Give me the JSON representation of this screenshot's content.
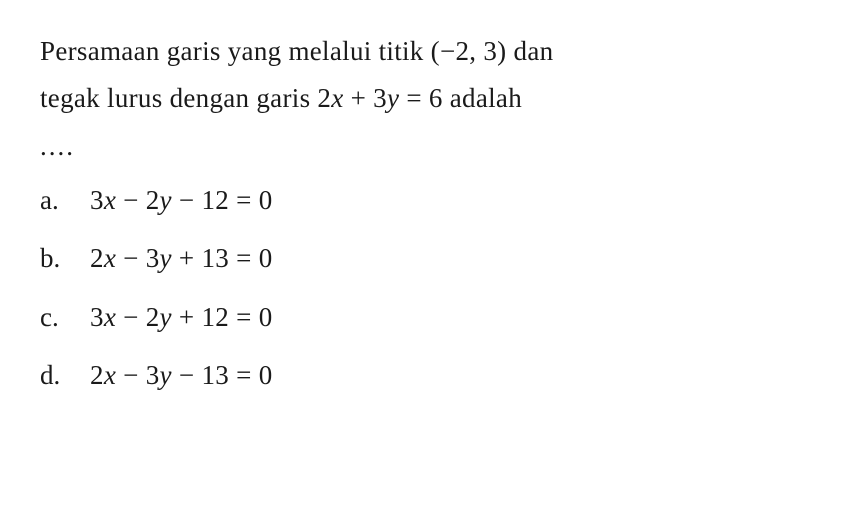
{
  "question": {
    "line1_part1": "Persamaan garis yang melalui titik (",
    "line1_neg": "−",
    "line1_part2": "2, 3) dan",
    "line2_part1": "tegak lurus dengan garis 2",
    "line2_x": "x",
    "line2_part2": " + 3",
    "line2_y": "y",
    "line2_part3": " = 6 adalah",
    "ellipsis": "....",
    "text_color": "#1a1a1a",
    "background_color": "#ffffff",
    "font_size": 27
  },
  "options": [
    {
      "label": "a.",
      "eq_prefix": "3",
      "eq_var1": "x",
      "eq_mid1": " − 2",
      "eq_var2": "y",
      "eq_mid2": " − 12 = 0"
    },
    {
      "label": "b.",
      "eq_prefix": "2",
      "eq_var1": "x",
      "eq_mid1": " − 3",
      "eq_var2": "y",
      "eq_mid2": " + 13 = 0"
    },
    {
      "label": "c.",
      "eq_prefix": "3",
      "eq_var1": "x",
      "eq_mid1": " − 2",
      "eq_var2": "y",
      "eq_mid2": " + 12 = 0"
    },
    {
      "label": "d.",
      "eq_prefix": "2",
      "eq_var1": "x",
      "eq_mid1": " − 3",
      "eq_var2": "y",
      "eq_mid2": " − 13 = 0"
    }
  ]
}
